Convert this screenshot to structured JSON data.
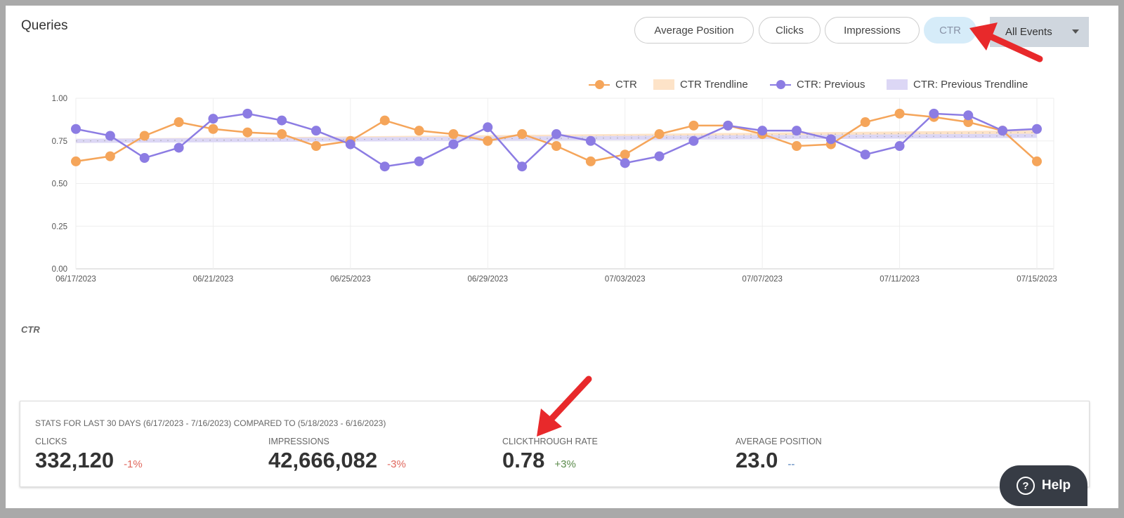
{
  "header": {
    "title": "Queries"
  },
  "metric_buttons": [
    {
      "label": "Average Position"
    },
    {
      "label": "Clicks"
    },
    {
      "label": "Impressions"
    },
    {
      "label": "CTR",
      "active": true
    }
  ],
  "events_dropdown": {
    "selected": "All Events"
  },
  "colors": {
    "ctr": "#f5a55a",
    "ctr_trend": "#fde3c8",
    "previous": "#8c7ce3",
    "previous_trend": "#dcd7f5",
    "annotation_arrow": "#e8292b",
    "negative": "#e0675c",
    "positive": "#5a8a4a",
    "neutral": "#4a7ab8"
  },
  "chart_data": {
    "type": "line",
    "title": "",
    "xlabel": "",
    "ylabel": "",
    "ylim": [
      0,
      1
    ],
    "y_ticks": [
      "0.00",
      "0.25",
      "0.50",
      "0.75",
      "1.00"
    ],
    "x_ticks": [
      "06/17/2023",
      "06/21/2023",
      "06/25/2023",
      "06/29/2023",
      "07/03/2023",
      "07/07/2023",
      "07/11/2023",
      "07/15/2023"
    ],
    "x_start": "06/17/2023",
    "x_end": "07/15/2023",
    "grid": true,
    "legend_position": "top-right",
    "series": [
      {
        "name": "CTR",
        "values": [
          0.63,
          0.66,
          0.78,
          0.86,
          0.82,
          0.8,
          0.79,
          0.72,
          0.75,
          0.87,
          0.81,
          0.79,
          0.75,
          0.79,
          0.72,
          0.63,
          0.67,
          0.79,
          0.84,
          0.84,
          0.79,
          0.72,
          0.73,
          0.86,
          0.91,
          0.89,
          0.86,
          0.81,
          0.63
        ]
      },
      {
        "name": "CTR Trendline",
        "trend": [
          0.75,
          0.8
        ]
      },
      {
        "name": "CTR: Previous",
        "values": [
          0.82,
          0.78,
          0.65,
          0.71,
          0.88,
          0.91,
          0.87,
          0.81,
          0.73,
          0.6,
          0.63,
          0.73,
          0.83,
          0.6,
          0.79,
          0.75,
          0.62,
          0.66,
          0.75,
          0.84,
          0.81,
          0.81,
          0.76,
          0.67,
          0.72,
          0.91,
          0.9,
          0.81,
          0.82
        ]
      },
      {
        "name": "CTR: Previous Trendline",
        "trend": [
          0.75,
          0.78
        ]
      }
    ]
  },
  "chart_caption": "CTR",
  "stats": {
    "heading": "STATS FOR LAST 30 DAYS (6/17/2023 - 7/16/2023) COMPARED TO (5/18/2023 - 6/16/2023)",
    "items": [
      {
        "label": "CLICKS",
        "value": "332,120",
        "change": "-1%"
      },
      {
        "label": "IMPRESSIONS",
        "value": "42,666,082",
        "change": "-3%"
      },
      {
        "label": "CLICKTHROUGH RATE",
        "value": "0.78",
        "change": "+3%"
      },
      {
        "label": "AVERAGE POSITION",
        "value": "23.0",
        "change": "--"
      }
    ]
  },
  "help": {
    "label": "Help",
    "icon": "question-circle-icon"
  }
}
